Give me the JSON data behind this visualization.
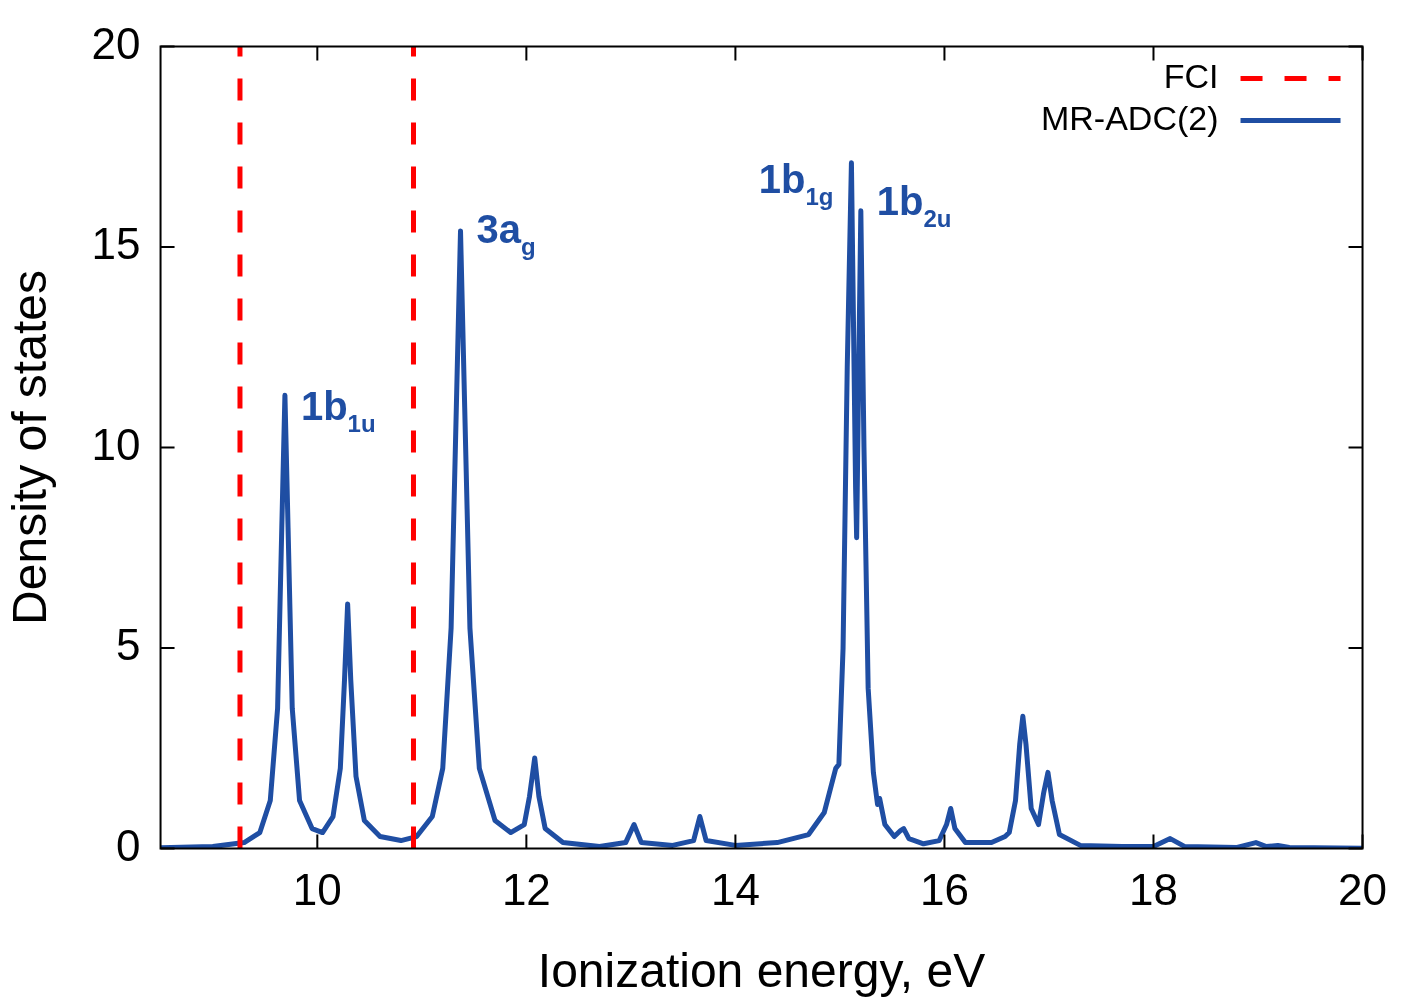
{
  "chart_data": {
    "type": "line",
    "xlabel": "Ionization energy, eV",
    "ylabel": "Density of states",
    "xlim": [
      8.5,
      20
    ],
    "xticks": [
      10,
      12,
      14,
      16,
      18,
      20
    ],
    "ylim": [
      0,
      20
    ],
    "yticks": [
      0,
      5,
      10,
      15,
      20
    ],
    "legend": "top right",
    "marker": "none",
    "series": [
      {
        "name": "FCI",
        "color": "#ff0000",
        "line_style": "dashed",
        "x": [
          9.26,
          9.26,
          10.09,
          10.92,
          10.92
        ],
        "values": [
          0,
          20,
          null,
          0,
          20
        ]
      },
      {
        "name": "MR-ADC(2)",
        "color": "#1f4ea3",
        "line_style": "solid",
        "x": [
          8.5,
          9.0,
          9.3,
          9.45,
          9.55,
          9.62,
          9.66,
          9.69,
          9.72,
          9.76,
          9.83,
          9.95,
          10.05,
          10.15,
          10.22,
          10.26,
          10.29,
          10.32,
          10.37,
          10.45,
          10.6,
          10.8,
          10.95,
          11.1,
          11.2,
          11.28,
          11.33,
          11.37,
          11.41,
          11.46,
          11.55,
          11.7,
          11.85,
          11.98,
          12.03,
          12.08,
          12.12,
          12.18,
          12.35,
          12.7,
          12.95,
          13.03,
          13.1,
          13.4,
          13.6,
          13.66,
          13.72,
          14.0,
          14.4,
          14.7,
          14.85,
          14.93,
          14.96,
          14.99,
          15.03,
          15.07,
          15.11,
          15.15,
          15.16,
          15.18,
          15.2,
          15.23,
          15.27,
          15.32,
          15.36,
          15.38,
          15.43,
          15.52,
          15.58,
          15.61,
          15.66,
          15.8,
          15.95,
          16.02,
          16.06,
          16.1,
          16.2,
          16.45,
          16.58,
          16.62,
          16.68,
          16.72,
          16.75,
          16.78,
          16.83,
          16.9,
          16.95,
          16.99,
          17.03,
          17.1,
          17.3,
          17.7,
          18.0,
          18.16,
          18.3,
          18.8,
          18.98,
          19.08,
          19.19,
          19.3,
          20
        ],
        "values": [
          0.02,
          0.05,
          0.15,
          0.4,
          1.2,
          3.5,
          8,
          11.3,
          8,
          3.5,
          1.2,
          0.5,
          0.4,
          0.8,
          2,
          4.2,
          6.1,
          4.2,
          1.8,
          0.7,
          0.3,
          0.2,
          0.3,
          0.8,
          2,
          5.5,
          11,
          15.4,
          11,
          5.5,
          2,
          0.7,
          0.4,
          0.6,
          1.3,
          2.26,
          1.3,
          0.5,
          0.15,
          0.05,
          0.15,
          0.6,
          0.15,
          0.08,
          0.2,
          0.8,
          0.2,
          0.08,
          0.15,
          0.35,
          0.9,
          1.7,
          2.0,
          2.1,
          5,
          12,
          17.1,
          9,
          7.75,
          12,
          15.9,
          10,
          4,
          1.9,
          1.1,
          1.25,
          0.6,
          0.3,
          0.45,
          0.5,
          0.25,
          0.12,
          0.2,
          0.6,
          1.0,
          0.5,
          0.15,
          0.15,
          0.3,
          0.4,
          1.2,
          2.6,
          3.3,
          2.6,
          1.0,
          0.6,
          1.4,
          1.9,
          1.2,
          0.35,
          0.08,
          0.05,
          0.05,
          0.25,
          0.05,
          0.03,
          0.15,
          0.05,
          0.08,
          0.03,
          0.01
        ]
      }
    ],
    "annotations": [
      {
        "text": "1b$_{1u}$",
        "x": 9.69,
        "y": 11.3
      },
      {
        "text": "3a$_{g}$",
        "x": 11.37,
        "y": 15.4
      },
      {
        "text": "1b$_{1g}$",
        "x": 15.11,
        "y": 17.1
      },
      {
        "text": "1b$_{2u}$",
        "x": 15.2,
        "y": 15.9
      }
    ]
  }
}
